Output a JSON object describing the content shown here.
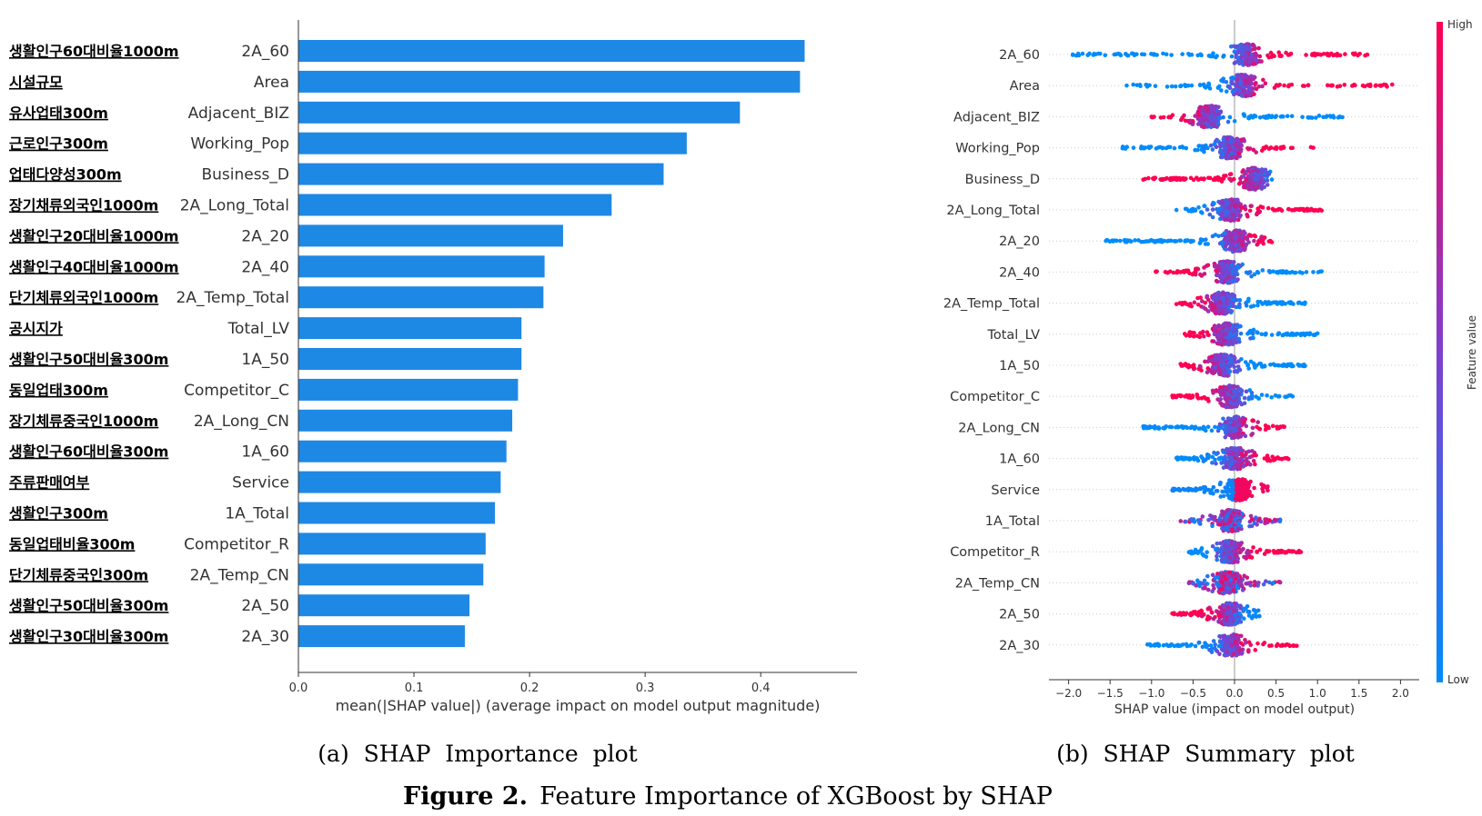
{
  "figure_caption": {
    "label": "Figure 2.",
    "text": "Feature Importance of XGBoost by SHAP"
  },
  "chart_data": [
    {
      "type": "bar",
      "orientation": "horizontal",
      "panel_caption": "(a)  SHAP  Importance  plot",
      "xlabel": "mean(|SHAP value|) (average impact on model output magnitude)",
      "xlim": [
        0.0,
        0.46
      ],
      "xticks": [
        "0.0",
        "0.1",
        "0.2",
        "0.3",
        "0.4"
      ],
      "bar_color": "#1e88e5",
      "categories": [
        "2A_60",
        "Area",
        "Adjacent_BIZ",
        "Working_Pop",
        "Business_D",
        "2A_Long_Total",
        "2A_20",
        "2A_40",
        "2A_Temp_Total",
        "Total_LV",
        "1A_50",
        "Competitor_C",
        "2A_Long_CN",
        "1A_60",
        "Service",
        "1A_Total",
        "Competitor_R",
        "2A_Temp_CN",
        "2A_50",
        "2A_30"
      ],
      "korean_labels": [
        "생활인구60대비율1000m",
        "시설규모",
        "유사업태300m",
        "근로인구300m",
        "업태다양성300m",
        "장기채류외국인1000m",
        "생활인구20대비율1000m",
        "생활인구40대비율1000m",
        "단기체류외국인1000m",
        "공시지가",
        "생활인구50대비율300m",
        "동일업태300m",
        "장기체류중국인1000m",
        "생활인구60대비율300m",
        "주류판매여부",
        "생활인구300m",
        "동일업태비율300m",
        "단기체류중국인300m",
        "생활인구50대비율300m",
        "생활인구30대비율300m"
      ],
      "values": [
        0.438,
        0.434,
        0.382,
        0.336,
        0.316,
        0.271,
        0.229,
        0.213,
        0.212,
        0.193,
        0.193,
        0.19,
        0.185,
        0.18,
        0.175,
        0.17,
        0.162,
        0.16,
        0.148,
        0.144
      ]
    },
    {
      "type": "scatter",
      "subtype": "beeswarm",
      "panel_caption": "(b)  SHAP  Summary  plot",
      "xlabel": "SHAP value (impact on model output)",
      "xlim": [
        -2.1,
        2.1
      ],
      "xticks": [
        "−2.0",
        "−1.5",
        "−1.0",
        "−0.5",
        "0.0",
        "0.5",
        "1.0",
        "1.5",
        "2.0"
      ],
      "colorbar": {
        "label": "Feature value",
        "high": "High",
        "low": "Low",
        "low_color": "#008bfb",
        "high_color": "#ff0052"
      },
      "features": [
        {
          "name": "2A_60",
          "min": -1.95,
          "max": 1.6,
          "center": 0.15,
          "mode": "pos"
        },
        {
          "name": "Area",
          "min": -1.3,
          "max": 1.9,
          "center": 0.1,
          "mode": "pos"
        },
        {
          "name": "Adjacent_BIZ",
          "min": -1.0,
          "max": 1.3,
          "center": -0.3,
          "mode": "neg"
        },
        {
          "name": "Working_Pop",
          "min": -1.35,
          "max": 0.95,
          "center": -0.05,
          "mode": "pos"
        },
        {
          "name": "Business_D",
          "min": -1.1,
          "max": 0.45,
          "center": 0.25,
          "mode": "neg"
        },
        {
          "name": "2A_Long_Total",
          "min": -0.7,
          "max": 1.05,
          "center": -0.05,
          "mode": "pos"
        },
        {
          "name": "2A_20",
          "min": -1.55,
          "max": 0.45,
          "center": 0.0,
          "mode": "pos"
        },
        {
          "name": "2A_40",
          "min": -0.95,
          "max": 1.05,
          "center": -0.1,
          "mode": "neg"
        },
        {
          "name": "2A_Temp_Total",
          "min": -0.7,
          "max": 0.85,
          "center": -0.15,
          "mode": "neg"
        },
        {
          "name": "Total_LV",
          "min": -0.6,
          "max": 1.0,
          "center": -0.1,
          "mode": "neg"
        },
        {
          "name": "1A_50",
          "min": -0.65,
          "max": 0.85,
          "center": -0.15,
          "mode": "neg"
        },
        {
          "name": "Competitor_C",
          "min": -0.75,
          "max": 0.7,
          "center": -0.05,
          "mode": "neg"
        },
        {
          "name": "2A_Long_CN",
          "min": -1.1,
          "max": 0.6,
          "center": 0.0,
          "mode": "pos"
        },
        {
          "name": "1A_60",
          "min": -0.7,
          "max": 0.65,
          "center": 0.0,
          "mode": "pos"
        },
        {
          "name": "Service",
          "min": -0.75,
          "max": 0.4,
          "center": 0.05,
          "mode": "split"
        },
        {
          "name": "1A_Total",
          "min": -0.65,
          "max": 0.55,
          "center": -0.05,
          "mode": "mix"
        },
        {
          "name": "Competitor_R",
          "min": -0.55,
          "max": 0.8,
          "center": -0.05,
          "mode": "pos"
        },
        {
          "name": "2A_Temp_CN",
          "min": -0.55,
          "max": 0.55,
          "center": -0.1,
          "mode": "mix"
        },
        {
          "name": "2A_50",
          "min": -0.75,
          "max": 0.3,
          "center": -0.05,
          "mode": "neg"
        },
        {
          "name": "2A_30",
          "min": -1.05,
          "max": 0.75,
          "center": -0.05,
          "mode": "pos"
        }
      ]
    }
  ]
}
